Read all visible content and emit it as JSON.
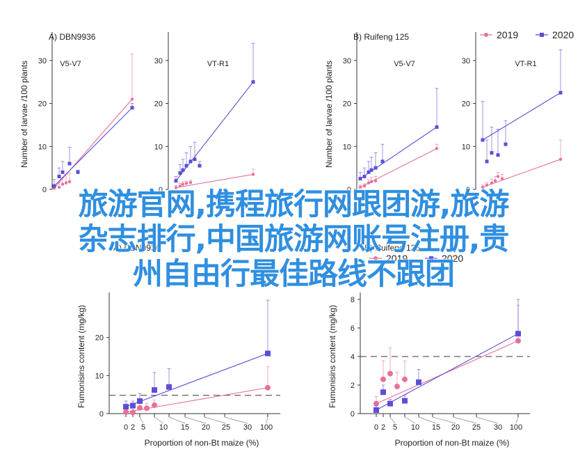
{
  "legend": {
    "series": [
      {
        "name": "2019",
        "color": "#e8709a",
        "marker": "circle"
      },
      {
        "name": "2020",
        "color": "#5a4fd6",
        "marker": "square"
      }
    ]
  },
  "overlay_text": [
    "旅游官网,携程旅行网跟团游,旅游",
    "杂志排行,中国旅游网账号注册,贵",
    "州自由行最佳路线不跟团"
  ],
  "chart_data": [
    {
      "type": "line",
      "panel": "A) DBN9936",
      "subtitle": "V5-V7",
      "ylabel": "Number of larvae /100 plants",
      "ylim": [
        0,
        35
      ],
      "yticks": [
        0,
        10,
        20,
        30
      ],
      "series": [
        {
          "name": "2019",
          "x": [
            0,
            2,
            5,
            7,
            10,
            100
          ],
          "y": [
            0.3,
            0.5,
            1.2,
            1.5,
            1.8,
            21
          ],
          "err": [
            0.5,
            1,
            1.5,
            2,
            2,
            10.5
          ]
        },
        {
          "name": "2020",
          "x": [
            0,
            2,
            5,
            10,
            25,
            100
          ],
          "y": [
            0.8,
            3,
            4,
            6,
            4,
            19
          ],
          "err": [
            1.5,
            2,
            2.5,
            3.8,
            0.5,
            1
          ]
        }
      ]
    },
    {
      "type": "line",
      "panel": "",
      "subtitle": "VT-R1",
      "ylabel": "",
      "ylim": [
        0,
        35
      ],
      "yticks": [
        0,
        10,
        20,
        30
      ],
      "series": [
        {
          "name": "2019",
          "x": [
            0,
            2,
            5,
            7,
            10,
            100
          ],
          "y": [
            0.4,
            0.8,
            1.2,
            1.4,
            1.6,
            3.5
          ],
          "err": [
            0.5,
            0.6,
            0.6,
            0.5,
            0.5,
            1.2
          ]
        },
        {
          "name": "2020",
          "x": [
            0,
            2,
            5,
            7,
            10,
            15,
            25,
            100
          ],
          "y": [
            2,
            3.8,
            4.5,
            5.5,
            6.5,
            7,
            5.5,
            25
          ],
          "err": [
            1,
            2,
            2.5,
            3,
            3.5,
            4,
            1,
            9
          ]
        }
      ]
    },
    {
      "type": "line",
      "panel": "B) Ruifeng 125",
      "subtitle": "V5-V7",
      "ylabel": "Number of larvae /100 plants",
      "ylim": [
        0,
        35
      ],
      "yticks": [
        0,
        10,
        20,
        30
      ],
      "series": [
        {
          "name": "2019",
          "x": [
            0,
            2,
            5,
            7,
            10,
            100
          ],
          "y": [
            0.5,
            0.8,
            1.5,
            1.8,
            2,
            9.5
          ],
          "err": [
            0.5,
            0.5,
            0.8,
            1,
            1,
            1
          ]
        },
        {
          "name": "2020",
          "x": [
            0,
            2,
            5,
            7,
            10,
            20,
            100
          ],
          "y": [
            2.5,
            3,
            4,
            4.5,
            5,
            6.5,
            14.5
          ],
          "err": [
            1.5,
            2,
            2.5,
            3,
            3.5,
            4,
            9
          ]
        }
      ]
    },
    {
      "type": "line",
      "panel": "",
      "subtitle": "VT-R1",
      "ylabel": "",
      "ylim": [
        0,
        35
      ],
      "yticks": [
        0,
        10,
        20,
        30
      ],
      "series": [
        {
          "name": "2019",
          "x": [
            0,
            2,
            5,
            7,
            10,
            15,
            100
          ],
          "y": [
            0.5,
            1,
            1.5,
            2,
            3,
            2.5,
            7
          ],
          "err": [
            0.5,
            0.6,
            0.8,
            1,
            1,
            1,
            4.5
          ]
        },
        {
          "name": "2020",
          "x": [
            0,
            2,
            5,
            10,
            20,
            100
          ],
          "y": [
            11.5,
            6.5,
            8.5,
            8,
            10.5,
            22.5
          ],
          "err": [
            9,
            5,
            6,
            6,
            5.5,
            10
          ]
        }
      ]
    },
    {
      "type": "line",
      "panel": "A) DBN9936",
      "subtitle": "",
      "ylabel": "Fumonisins content (mg/kg)",
      "ylim": [
        0,
        30
      ],
      "yticks": [
        0,
        10,
        20
      ],
      "xlabel": "Proportion of non-Bt maize (%)",
      "xticks": [
        0,
        2,
        5,
        10,
        15,
        20,
        25,
        30,
        100
      ],
      "threshold": 4.8,
      "series": [
        {
          "name": "2019",
          "x": [
            0,
            2,
            5,
            7,
            10,
            100
          ],
          "y": [
            0.4,
            0.3,
            1.5,
            1.4,
            2.2,
            6.8
          ],
          "err": [
            0.8,
            0.9,
            1.2,
            1.3,
            1.4,
            5.5
          ]
        },
        {
          "name": "2020",
          "x": [
            0,
            2,
            5,
            10,
            15,
            100
          ],
          "y": [
            1.8,
            2.1,
            3.3,
            6.2,
            7,
            15.8
          ],
          "err": [
            1.5,
            1.2,
            2,
            4.6,
            4.8,
            14
          ]
        }
      ]
    },
    {
      "type": "line",
      "panel": "B) Ruifeng 125",
      "subtitle": "",
      "ylabel": "Fumonisins content (mg/kg)",
      "ylim": [
        0,
        8
      ],
      "yticks": [
        0,
        2,
        4,
        6,
        8
      ],
      "xlabel": "Proportion of non-Bt maize (%)",
      "xticks": [
        0,
        2,
        5,
        10,
        15,
        20,
        25,
        30,
        100
      ],
      "threshold": 4,
      "series": [
        {
          "name": "2019",
          "x": [
            0,
            2,
            5,
            7,
            10,
            100
          ],
          "y": [
            0.7,
            2.4,
            2.8,
            1.9,
            2.4,
            5.1
          ],
          "err": [
            0.5,
            1.3,
            1.8,
            1,
            1.3,
            2.5
          ]
        },
        {
          "name": "2020",
          "x": [
            0,
            2,
            5,
            10,
            15,
            100
          ],
          "y": [
            0.25,
            1.5,
            0.7,
            0.9,
            2.2,
            5.6
          ],
          "err": [
            0.3,
            0.5,
            0.3,
            0.4,
            0.9,
            2.5
          ]
        }
      ]
    }
  ]
}
